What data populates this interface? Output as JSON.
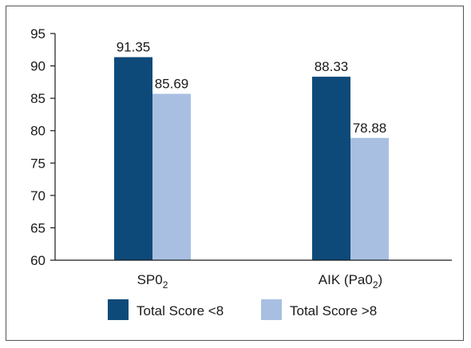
{
  "chart_data": {
    "type": "bar",
    "categories": [
      {
        "main": "SP0",
        "sub": "2",
        "tail": ""
      },
      {
        "main": "AIK (Pa0",
        "sub": "2",
        "tail": ")"
      }
    ],
    "series": [
      {
        "name": "Total Score <8",
        "values": [
          91.35,
          88.33
        ],
        "labels": [
          "91.35",
          "88.33"
        ],
        "color": "#0d4a7a"
      },
      {
        "name": "Total Score >8",
        "values": [
          85.69,
          78.88
        ],
        "labels": [
          "85.69",
          "78.88"
        ],
        "color": "#a9bfe2"
      }
    ],
    "ylim": [
      60,
      95
    ],
    "yticks": [
      60,
      65,
      70,
      75,
      80,
      85,
      90,
      95
    ],
    "grid": false,
    "legend_position": "bottom"
  }
}
